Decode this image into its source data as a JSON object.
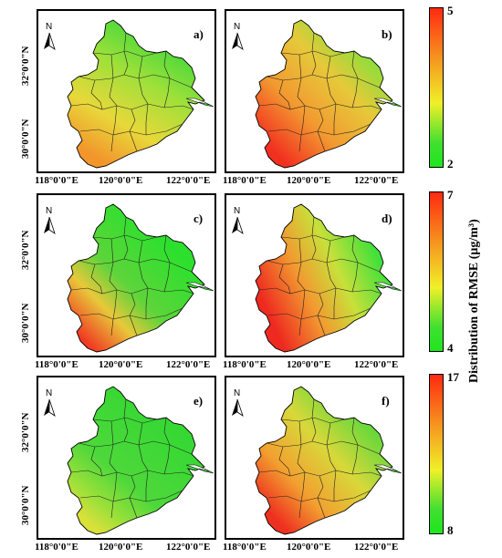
{
  "panels": [
    {
      "label": "a)",
      "colorbar": 0,
      "gradient": "a"
    },
    {
      "label": "b)",
      "colorbar": 0,
      "gradient": "b"
    },
    {
      "label": "c)",
      "colorbar": 1,
      "gradient": "c"
    },
    {
      "label": "d)",
      "colorbar": 1,
      "gradient": "d"
    },
    {
      "label": "e)",
      "colorbar": 2,
      "gradient": "e"
    },
    {
      "label": "f)",
      "colorbar": 2,
      "gradient": "f"
    }
  ],
  "axes": {
    "lat_labels": [
      "32°0'0\"N",
      "30°0'0\"N"
    ],
    "lon_labels": [
      "118°0'0\"E",
      "120°0'0\"E",
      "122°0'0\"E"
    ],
    "north_label": "N"
  },
  "colorbars": [
    {
      "max": "5",
      "min": "2"
    },
    {
      "max": "7",
      "min": "4"
    },
    {
      "max": "17",
      "min": "8"
    }
  ],
  "colorbar_title": "Distribution of RMSE (μg/m³)",
  "colors": {
    "low": "#1ee61e",
    "mid": "#f0f028",
    "high": "#ff2a10"
  }
}
